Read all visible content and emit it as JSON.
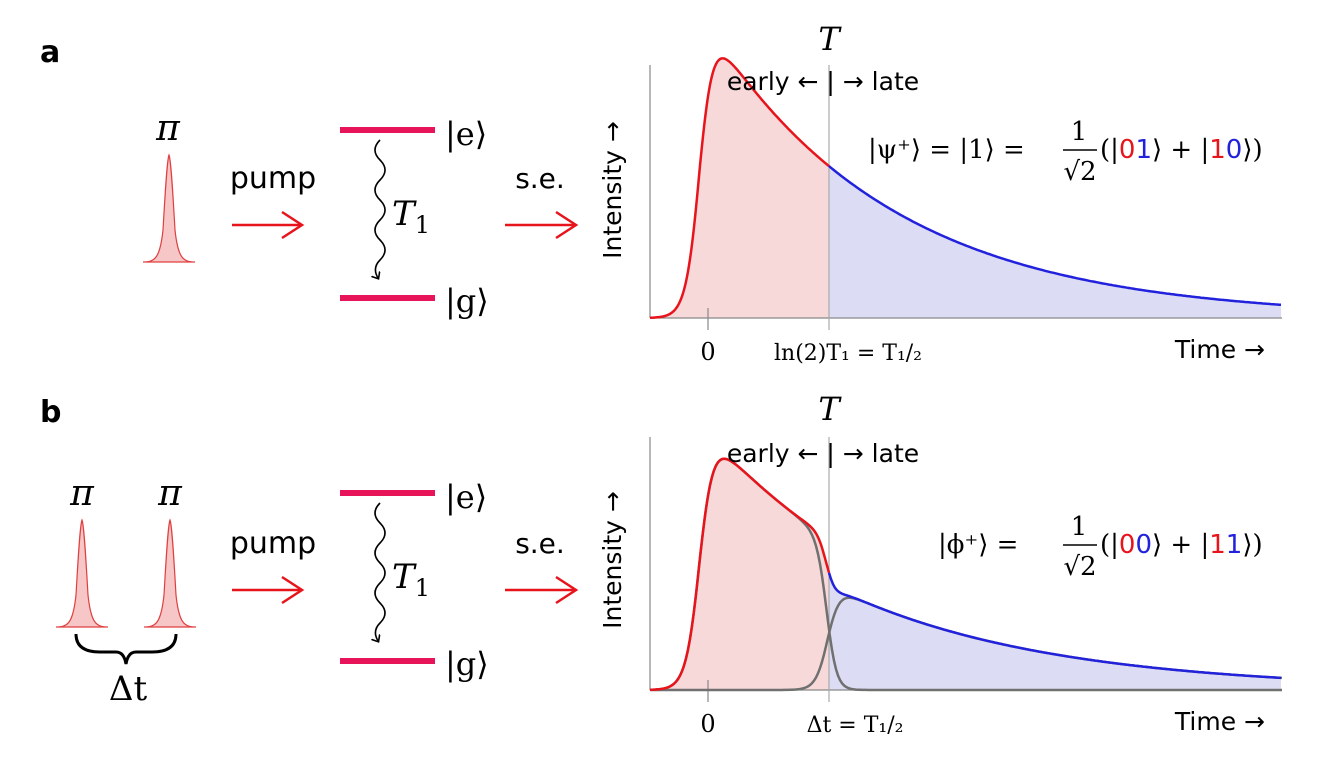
{
  "panels": [
    {
      "label": "a",
      "pulse_labels": [
        "π"
      ],
      "pump_label": "pump",
      "level_excited": "|e⟩",
      "level_ground": "|g⟩",
      "decay_label": "T",
      "decay_subscript": "1",
      "emission_label": "s.e.",
      "separator_label": "T",
      "early_late": "early ← | → late",
      "y_axis_label": "Intensity →",
      "x_axis_label": "Time →",
      "tick_zero": "0",
      "tick_mid": "ln(2)T₁ = T₁/₂",
      "state": {
        "prefix": "|ψ⁺⟩ = |1⟩ = ",
        "coef_num": "1",
        "coef_den": "√2",
        "open": "(|",
        "ket1_a": "0",
        "ket1_b": "1",
        "plus": "⟩ + |",
        "ket2_a": "1",
        "ket2_b": "0",
        "close": "⟩)"
      }
    },
    {
      "label": "b",
      "pulse_labels": [
        "π",
        "π"
      ],
      "delay_label": "Δt",
      "pump_label": "pump",
      "level_excited": "|e⟩",
      "level_ground": "|g⟩",
      "decay_label": "T",
      "decay_subscript": "1",
      "emission_label": "s.e.",
      "separator_label": "T",
      "early_late": "early ← | → late",
      "y_axis_label": "Intensity →",
      "x_axis_label": "Time →",
      "tick_zero": "0",
      "tick_mid": "Δt = T₁/₂",
      "state": {
        "prefix": "|ϕ⁺⟩ = ",
        "coef_num": "1",
        "coef_den": "√2",
        "open": "(|",
        "ket1_a": "0",
        "ket1_b": "0",
        "plus": "⟩ + |",
        "ket2_a": "1",
        "ket2_b": "1",
        "close": "⟩)"
      }
    }
  ],
  "colors": {
    "early": "#e8141c",
    "late": "#2222dd",
    "pulse": "#f7c6c6",
    "pulse_edge": "#e04040",
    "level": "#e8145a",
    "arrow": "#e8141c",
    "axis": "#888888",
    "separator": "#aaaaaa",
    "gray_curve": "#707070"
  }
}
